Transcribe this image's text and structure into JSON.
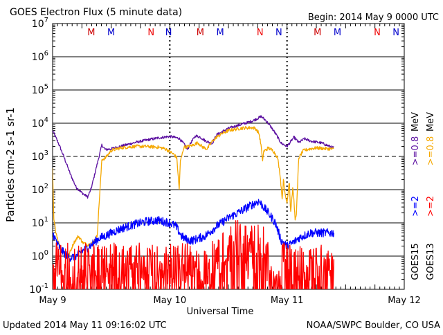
{
  "header": {
    "title": "GOES Electron Flux (5 minute data)",
    "begin": "Begin: 2014 May 9 0000 UTC"
  },
  "footer": {
    "updated": "Updated 2014 May 11 09:16:02 UTC",
    "credit": "NOAA/SWPC Boulder, CO USA"
  },
  "colors": {
    "goes15_ge08": "#5b0fa0",
    "goes13_ge08": "#f5a800",
    "goes15_ge2": "#0000ff",
    "goes13_ge2": "#ff0000",
    "marker_m": "#cc0000",
    "marker_n_red": "#ee0000",
    "marker_n_blue": "#0000cc",
    "grid": "#000000"
  },
  "chart_data": {
    "type": "line",
    "title": "GOES Electron Flux (5 minute data)",
    "xlabel": "Universal Time",
    "ylabel": "Particles cm-2 s-1 sr-1",
    "y_scale": "log",
    "ylim": [
      0.1,
      10000000
    ],
    "x_unit": "days since 2014 May 9 0000 UTC",
    "xlim": [
      0,
      3
    ],
    "x_tick_labels": [
      "May 9",
      "May 10",
      "May 11",
      "May 12"
    ],
    "y_tick_labels": [
      {
        "base": "10",
        "exp": "-1"
      },
      {
        "base": "10",
        "exp": "0"
      },
      {
        "base": "10",
        "exp": "1"
      },
      {
        "base": "10",
        "exp": "2"
      },
      {
        "base": "10",
        "exp": "3"
      },
      {
        "base": "10",
        "exp": "4"
      },
      {
        "base": "10",
        "exp": "5"
      },
      {
        "base": "10",
        "exp": "6"
      },
      {
        "base": "10",
        "exp": "7"
      }
    ],
    "threshold_line": 1000,
    "day_markers": [
      {
        "label": "M",
        "x": 0.33,
        "color_key": "marker_m"
      },
      {
        "label": "M",
        "x": 0.5,
        "color_key": "marker_n_blue"
      },
      {
        "label": "N",
        "x": 0.84,
        "color_key": "marker_n_red"
      },
      {
        "label": "N",
        "x": 0.99,
        "color_key": "marker_n_blue"
      },
      {
        "label": "M",
        "x": 1.26,
        "color_key": "marker_m"
      },
      {
        "label": "M",
        "x": 1.43,
        "color_key": "marker_n_blue"
      },
      {
        "label": "N",
        "x": 1.77,
        "color_key": "marker_n_red"
      },
      {
        "label": "N",
        "x": 1.93,
        "color_key": "marker_n_blue"
      },
      {
        "label": "M",
        "x": 2.26,
        "color_key": "marker_m"
      },
      {
        "label": "M",
        "x": 2.43,
        "color_key": "marker_n_blue"
      },
      {
        "label": "N",
        "x": 2.77,
        "color_key": "marker_n_red"
      },
      {
        "label": "N",
        "x": 2.93,
        "color_key": "marker_n_blue"
      }
    ],
    "right_legend": {
      "energy_ge08": ">=0.8",
      "energy_ge2": ">=2",
      "unit": "MeV",
      "sat_15": "GOES15",
      "sat_13": "GOES13"
    },
    "series": [
      {
        "name": "GOES15 >=0.8 MeV",
        "color_key": "goes15_ge08",
        "noise": 0.04,
        "points": [
          [
            0.0,
            6000
          ],
          [
            0.05,
            2500
          ],
          [
            0.1,
            900
          ],
          [
            0.15,
            300
          ],
          [
            0.2,
            120
          ],
          [
            0.25,
            80
          ],
          [
            0.3,
            60
          ],
          [
            0.33,
            110
          ],
          [
            0.36,
            300
          ],
          [
            0.42,
            2200
          ],
          [
            0.45,
            1600
          ],
          [
            0.5,
            1700
          ],
          [
            0.6,
            2100
          ],
          [
            0.7,
            2600
          ],
          [
            0.8,
            3100
          ],
          [
            0.9,
            3600
          ],
          [
            1.0,
            4000
          ],
          [
            1.08,
            3500
          ],
          [
            1.12,
            2400
          ],
          [
            1.15,
            1600
          ],
          [
            1.18,
            2600
          ],
          [
            1.22,
            4200
          ],
          [
            1.26,
            3800
          ],
          [
            1.3,
            3000
          ],
          [
            1.33,
            2700
          ],
          [
            1.36,
            2400
          ],
          [
            1.4,
            4500
          ],
          [
            1.5,
            7000
          ],
          [
            1.6,
            9000
          ],
          [
            1.7,
            11500
          ],
          [
            1.75,
            14000
          ],
          [
            1.78,
            16000
          ],
          [
            1.82,
            12000
          ],
          [
            1.86,
            8000
          ],
          [
            1.9,
            5000
          ],
          [
            1.95,
            2500
          ],
          [
            2.0,
            2000
          ],
          [
            2.06,
            3800
          ],
          [
            2.1,
            2600
          ],
          [
            2.15,
            3400
          ],
          [
            2.2,
            2900
          ],
          [
            2.25,
            2700
          ],
          [
            2.3,
            2500
          ],
          [
            2.35,
            2100
          ],
          [
            2.4,
            1800
          ]
        ]
      },
      {
        "name": "GOES13 >=0.8 MeV",
        "color_key": "goes13_ge08",
        "noise": 0.05,
        "points": [
          [
            0.0,
            400
          ],
          [
            0.01,
            12
          ],
          [
            0.03,
            5
          ],
          [
            0.06,
            2
          ],
          [
            0.1,
            1.2
          ],
          [
            0.14,
            1.1
          ],
          [
            0.18,
            2.5
          ],
          [
            0.22,
            4
          ],
          [
            0.26,
            2.5
          ],
          [
            0.3,
            2.2
          ],
          [
            0.34,
            2.5
          ],
          [
            0.38,
            4
          ],
          [
            0.42,
            800
          ],
          [
            0.45,
            900
          ],
          [
            0.5,
            1500
          ],
          [
            0.55,
            1700
          ],
          [
            0.6,
            1850
          ],
          [
            0.7,
            2000
          ],
          [
            0.8,
            2000
          ],
          [
            0.9,
            1900
          ],
          [
            0.96,
            1700
          ],
          [
            1.0,
            1400
          ],
          [
            1.04,
            1100
          ],
          [
            1.06,
            900
          ],
          [
            1.07,
            300
          ],
          [
            1.08,
            100
          ],
          [
            1.09,
            700
          ],
          [
            1.12,
            1900
          ],
          [
            1.16,
            2000
          ],
          [
            1.2,
            2200
          ],
          [
            1.24,
            2600
          ],
          [
            1.28,
            1900
          ],
          [
            1.32,
            1700
          ],
          [
            1.36,
            2800
          ],
          [
            1.4,
            3800
          ],
          [
            1.45,
            5000
          ],
          [
            1.5,
            6000
          ],
          [
            1.55,
            6500
          ],
          [
            1.6,
            7000
          ],
          [
            1.65,
            7200
          ],
          [
            1.7,
            7400
          ],
          [
            1.73,
            7000
          ],
          [
            1.76,
            5000
          ],
          [
            1.78,
            2000
          ],
          [
            1.79,
            700
          ],
          [
            1.8,
            1400
          ],
          [
            1.84,
            1800
          ],
          [
            1.88,
            1500
          ],
          [
            1.9,
            1200
          ],
          [
            1.92,
            900
          ],
          [
            1.94,
            300
          ],
          [
            1.96,
            50
          ],
          [
            1.97,
            250
          ],
          [
            1.98,
            80
          ],
          [
            2.0,
            40
          ],
          [
            2.02,
            200
          ],
          [
            2.03,
            20
          ],
          [
            2.05,
            120
          ],
          [
            2.07,
            12
          ],
          [
            2.08,
            20
          ],
          [
            2.1,
            900
          ],
          [
            2.14,
            1500
          ],
          [
            2.2,
            1700
          ],
          [
            2.25,
            1800
          ],
          [
            2.3,
            1750
          ],
          [
            2.35,
            1700
          ],
          [
            2.4,
            1650
          ]
        ]
      },
      {
        "name": "GOES15 >=2 MeV",
        "color_key": "goes15_ge2",
        "noise": 0.13,
        "points": [
          [
            0.0,
            5
          ],
          [
            0.05,
            2
          ],
          [
            0.1,
            1.2
          ],
          [
            0.15,
            0.9
          ],
          [
            0.2,
            1.0
          ],
          [
            0.25,
            1.4
          ],
          [
            0.3,
            1.8
          ],
          [
            0.35,
            2.5
          ],
          [
            0.4,
            3.5
          ],
          [
            0.45,
            4
          ],
          [
            0.5,
            5
          ],
          [
            0.6,
            7
          ],
          [
            0.7,
            9
          ],
          [
            0.8,
            11
          ],
          [
            0.9,
            12
          ],
          [
            1.0,
            10
          ],
          [
            1.05,
            8
          ],
          [
            1.1,
            4
          ],
          [
            1.15,
            3
          ],
          [
            1.2,
            3
          ],
          [
            1.3,
            4
          ],
          [
            1.4,
            8
          ],
          [
            1.5,
            14
          ],
          [
            1.6,
            22
          ],
          [
            1.7,
            35
          ],
          [
            1.76,
            45
          ],
          [
            1.8,
            30
          ],
          [
            1.85,
            18
          ],
          [
            1.9,
            10
          ],
          [
            1.95,
            3
          ],
          [
            2.0,
            2
          ],
          [
            2.05,
            2.5
          ],
          [
            2.1,
            3.5
          ],
          [
            2.2,
            5
          ],
          [
            2.3,
            5
          ],
          [
            2.4,
            5
          ]
        ]
      },
      {
        "name": "GOES13 >=2 MeV",
        "color_key": "goes13_ge2",
        "spiky": true,
        "segments": [
          {
            "x0": 0.0,
            "x1": 1.18,
            "top": 2.5
          },
          {
            "x0": 1.18,
            "x1": 1.36,
            "top": 1.5
          },
          {
            "x0": 1.36,
            "x1": 1.42,
            "top": 4
          },
          {
            "x0": 1.42,
            "x1": 1.55,
            "top": 8
          },
          {
            "x0": 1.55,
            "x1": 1.72,
            "top": 12
          },
          {
            "x0": 1.72,
            "x1": 1.86,
            "top": 11
          },
          {
            "x0": 1.86,
            "x1": 1.95,
            "top": 0.5
          },
          {
            "x0": 1.95,
            "x1": 2.4,
            "top": 2.5
          }
        ]
      }
    ]
  }
}
